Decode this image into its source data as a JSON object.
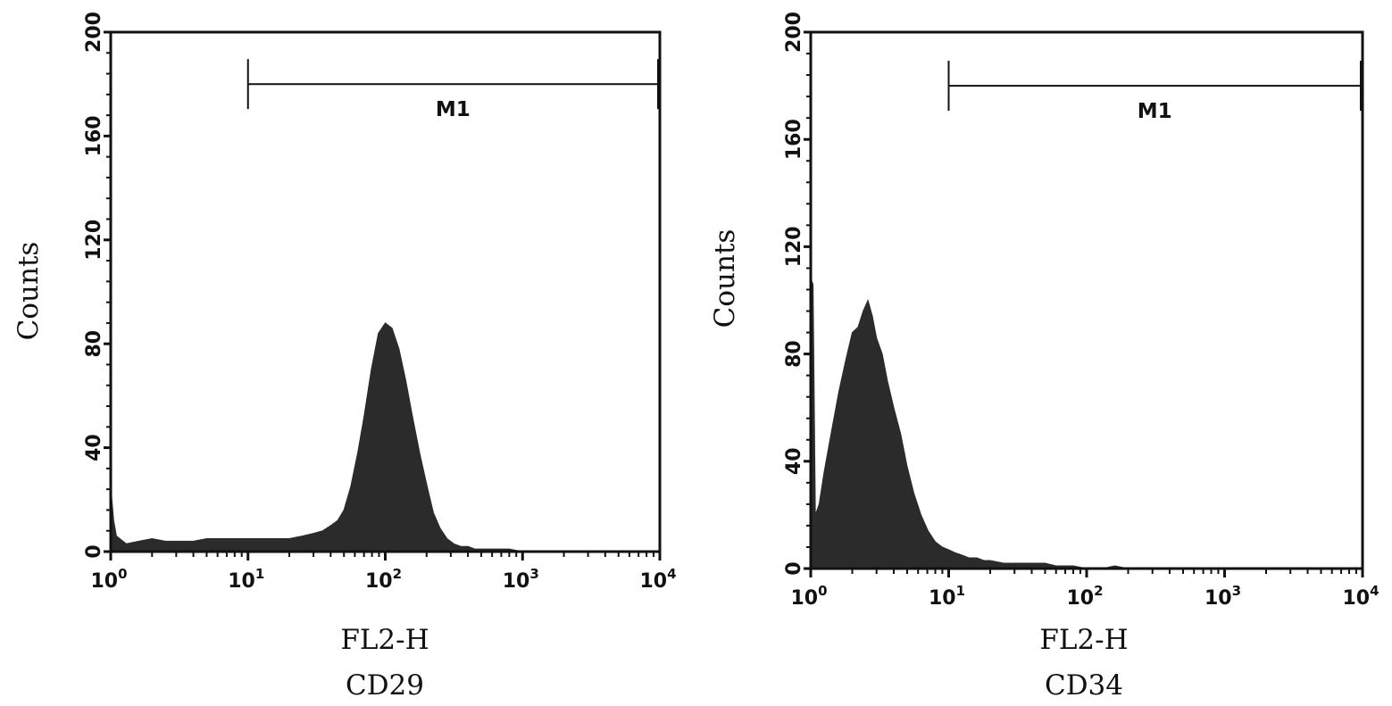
{
  "chart_data": [
    {
      "type": "area",
      "xlabel": "FL2-H",
      "sublabel": "CD29",
      "ylabel": "Counts",
      "xscale": "log",
      "xlim": [
        1,
        10000
      ],
      "ylim": [
        0,
        200
      ],
      "x_ticks": [
        {
          "base": "10",
          "exp": "0"
        },
        {
          "base": "10",
          "exp": "1"
        },
        {
          "base": "10",
          "exp": "2"
        },
        {
          "base": "10",
          "exp": "3"
        },
        {
          "base": "10",
          "exp": "4"
        }
      ],
      "y_ticks": [
        "0",
        "40",
        "80",
        "120",
        "160",
        "200"
      ],
      "marker": {
        "label": "M1",
        "x_start": 10,
        "x_end": 10000,
        "y": 180
      },
      "fill_color": "#2b2b2b",
      "grid": false,
      "histogram": {
        "x": [
          1.0,
          1.05,
          1.1,
          1.3,
          1.6,
          2.0,
          2.5,
          3.2,
          4.0,
          5.0,
          6.3,
          8.0,
          10,
          13,
          16,
          20,
          25,
          30,
          35,
          40,
          45,
          50,
          56,
          63,
          70,
          79,
          89,
          100,
          112,
          126,
          141,
          158,
          178,
          200,
          224,
          251,
          282,
          316,
          355,
          400,
          450,
          500,
          600,
          800,
          1000,
          2000,
          5000,
          10000
        ],
        "y": [
          25,
          12,
          6,
          3,
          4,
          5,
          4,
          4,
          4,
          5,
          5,
          5,
          5,
          5,
          5,
          5,
          6,
          7,
          8,
          10,
          12,
          16,
          25,
          38,
          52,
          70,
          84,
          88,
          86,
          78,
          66,
          52,
          38,
          26,
          15,
          9,
          5,
          3,
          2,
          2,
          1,
          1,
          1,
          1,
          0,
          0,
          0,
          0
        ]
      }
    },
    {
      "type": "area",
      "xlabel": "FL2-H",
      "sublabel": "CD34",
      "ylabel": "Counts",
      "xscale": "log",
      "xlim": [
        1,
        10000
      ],
      "ylim": [
        0,
        200
      ],
      "x_ticks": [
        {
          "base": "10",
          "exp": "0"
        },
        {
          "base": "10",
          "exp": "1"
        },
        {
          "base": "10",
          "exp": "2"
        },
        {
          "base": "10",
          "exp": "3"
        },
        {
          "base": "10",
          "exp": "4"
        }
      ],
      "y_ticks": [
        "0",
        "40",
        "80",
        "120",
        "160",
        "200"
      ],
      "marker": {
        "label": "M1",
        "x_start": 10,
        "x_end": 10000,
        "y": 180
      },
      "fill_color": "#2b2b2b",
      "grid": false,
      "histogram": {
        "x": [
          1.0,
          1.04,
          1.08,
          1.15,
          1.25,
          1.4,
          1.6,
          1.8,
          2.0,
          2.2,
          2.4,
          2.6,
          2.8,
          3.0,
          3.3,
          3.6,
          4.0,
          4.5,
          5.0,
          5.6,
          6.3,
          7.1,
          8.0,
          9.0,
          10,
          11,
          12.5,
          14,
          16,
          18,
          20,
          25,
          30,
          40,
          50,
          60,
          80,
          100,
          130,
          160,
          200,
          10000
        ],
        "y": [
          108,
          106,
          20,
          24,
          36,
          50,
          66,
          78,
          88,
          90,
          96,
          100,
          94,
          86,
          80,
          70,
          60,
          50,
          38,
          28,
          20,
          14,
          10,
          8,
          7,
          6,
          5,
          4,
          4,
          3,
          3,
          2,
          2,
          2,
          2,
          1,
          1,
          0,
          0,
          1,
          0,
          0
        ]
      }
    }
  ]
}
